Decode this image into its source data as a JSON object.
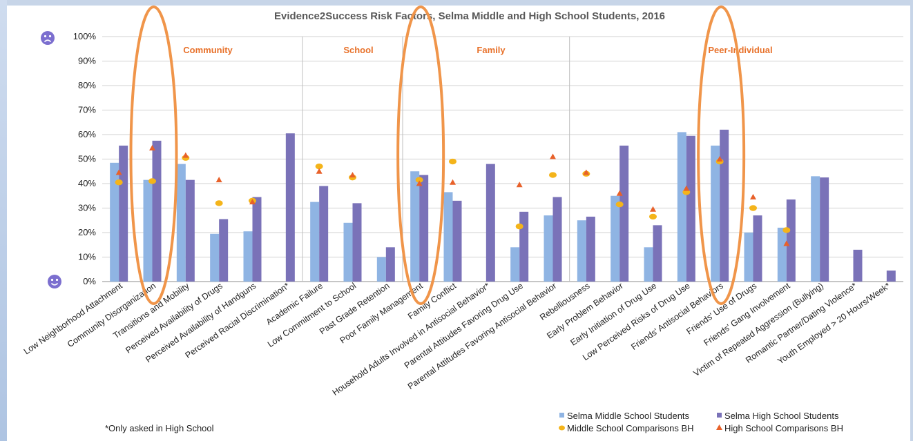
{
  "chart_data": {
    "type": "bar",
    "title": "Evidence2Success Risk Factors, Selma Middle and High School Students, 2016",
    "ylim": [
      0,
      100
    ],
    "yticks": [
      "0%",
      "10%",
      "20%",
      "30%",
      "40%",
      "50%",
      "60%",
      "70%",
      "80%",
      "90%",
      "100%"
    ],
    "grid": true,
    "legend_position": "bottom-right",
    "categories": [
      "Low Neighborhood Attachment",
      "Community Disorganization",
      "Transitions and Mobility",
      "Perceived Availability of Drugs",
      "Perceived Availability of Handguns",
      "Perceived Racial Discrimination*",
      "Academic Failure",
      "Low Commitment to School",
      "Past Grade Retention",
      "Poor Family Management",
      "Family Conflict",
      "Household Adults Involved in Antisocial Behavior*",
      "Parental Attitudes Favoring Drug Use",
      "Parental Attitudes Favoring Antisocial Behavior",
      "Rebelliousness",
      "Early Problem Behavior",
      "Early Initiation of Drug Use",
      "Low Perceived Risks of Drug Use",
      "Friends' Antisocial Behaviors",
      "Friends' Use of Drugs",
      "Friends' Gang Involvement",
      "Victim of Repeated Aggression (Bullying)",
      "Romantic Partner/Dating Violence*",
      "Youth Employed > 20 Hours/Week*"
    ],
    "series": [
      {
        "name": "Selma Middle School Students",
        "kind": "bar",
        "color": "#8fb4e3",
        "values": [
          48.5,
          41.5,
          48,
          19.5,
          20.5,
          null,
          32.5,
          24,
          10,
          45,
          36.5,
          null,
          14,
          27,
          25,
          35,
          14,
          61,
          55.5,
          20,
          22,
          43,
          null,
          null
        ]
      },
      {
        "name": "Selma High School Students",
        "kind": "bar",
        "color": "#7a72b8",
        "values": [
          55.5,
          57.5,
          41.5,
          25.5,
          34.5,
          60.5,
          39,
          32,
          14,
          43.5,
          33,
          48,
          28.5,
          34.5,
          26.5,
          55.5,
          23,
          59.5,
          62,
          27,
          33.5,
          42.5,
          13,
          4.5
        ]
      },
      {
        "name": "Middle School Comparisons BH",
        "kind": "marker-circle",
        "color": "#f4b41a",
        "values": [
          40.5,
          41,
          50.5,
          32,
          33,
          null,
          47,
          42.5,
          null,
          41.5,
          49,
          null,
          22.5,
          43.5,
          44,
          31.5,
          26.5,
          36.5,
          49,
          30,
          21,
          null,
          null,
          null
        ]
      },
      {
        "name": "High School Comparisons BH",
        "kind": "marker-triangle",
        "color": "#e8612a",
        "values": [
          44.5,
          54.5,
          51.5,
          41.5,
          32.5,
          null,
          45,
          43.5,
          null,
          40,
          40.5,
          null,
          39.5,
          51,
          44.5,
          36,
          29.5,
          38,
          50,
          34.5,
          15.5,
          null,
          null,
          null
        ]
      }
    ],
    "sections": [
      {
        "label": "Community",
        "start": 0,
        "end": 5
      },
      {
        "label": "School",
        "start": 6,
        "end": 8
      },
      {
        "label": "Family",
        "start": 9,
        "end": 13
      },
      {
        "label": "Peer-Individual",
        "start": 14,
        "end": 23
      }
    ],
    "highlight_ovals": [
      {
        "category_index": 1,
        "color": "#f0954a"
      },
      {
        "category_index": 9,
        "color": "#f0954a"
      },
      {
        "category_index": 18,
        "color": "#f0954a"
      }
    ],
    "icons": {
      "top": "sad-face-icon",
      "bottom": "happy-face-icon",
      "color": "#7c6fcf"
    },
    "footnote": "*Only asked in High School"
  }
}
